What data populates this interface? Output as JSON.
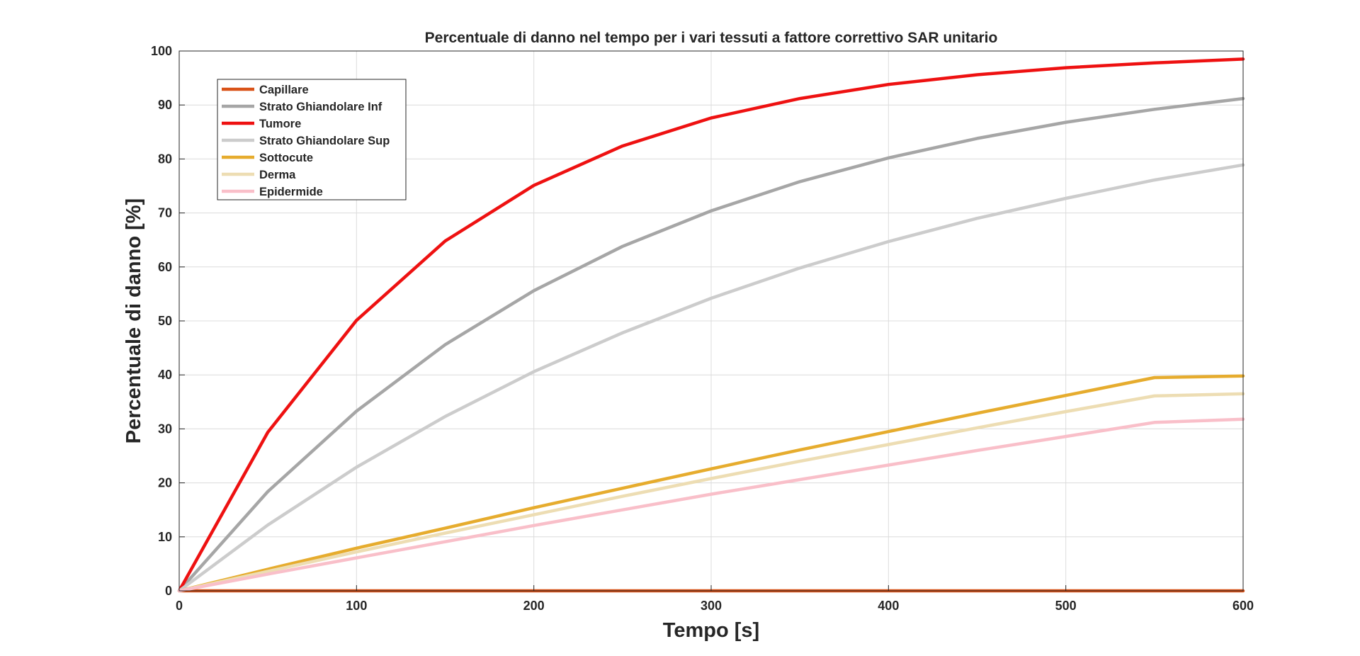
{
  "chart_data": {
    "type": "line",
    "title": "Percentuale di danno nel tempo per i vari tessuti a fattore correttivo SAR unitario",
    "xlabel": "Tempo [s]",
    "ylabel": "Percentuale di danno [%]",
    "xlim": [
      0,
      600
    ],
    "ylim": [
      0,
      100
    ],
    "xticks": [
      "0",
      "100",
      "200",
      "300",
      "400",
      "500",
      "600"
    ],
    "yticks": [
      "0",
      "10",
      "20",
      "30",
      "40",
      "50",
      "60",
      "70",
      "80",
      "90",
      "100"
    ],
    "grid": true,
    "legend_position": "top-left",
    "x": [
      0,
      50,
      100,
      150,
      200,
      250,
      300,
      350,
      400,
      450,
      500,
      550,
      600
    ],
    "series": [
      {
        "name": "Capillare",
        "color": "#D95319",
        "values": [
          0,
          0,
          0,
          0,
          0,
          0,
          0,
          0,
          0,
          0,
          0,
          0,
          0
        ]
      },
      {
        "name": "Strato Ghiandolare Inf",
        "color": "#A6A6A6",
        "values": [
          0,
          18.4,
          33.3,
          45.6,
          55.6,
          63.8,
          70.4,
          75.8,
          80.2,
          83.8,
          86.8,
          89.2,
          91.2
        ]
      },
      {
        "name": "Tumore",
        "color": "#EE1111",
        "values": [
          0,
          29.4,
          50.1,
          64.8,
          75.1,
          82.4,
          87.6,
          91.2,
          93.8,
          95.6,
          96.9,
          97.8,
          98.5
        ]
      },
      {
        "name": "Strato Ghiandolare Sup",
        "color": "#CCCCCC",
        "values": [
          0,
          12.2,
          22.9,
          32.3,
          40.6,
          47.8,
          54.2,
          59.8,
          64.7,
          69.0,
          72.7,
          76.1,
          78.9
        ]
      },
      {
        "name": "Sottocute",
        "color": "#E6AC2E",
        "values": [
          0,
          4.0,
          7.9,
          11.6,
          15.4,
          19.0,
          22.6,
          26.1,
          29.5,
          32.9,
          36.2,
          39.5,
          39.8
        ]
      },
      {
        "name": "Derma",
        "color": "#EDDDB3",
        "values": [
          0,
          3.6,
          7.2,
          10.7,
          14.1,
          17.5,
          20.8,
          24.0,
          27.1,
          30.2,
          33.2,
          36.1,
          36.5
        ]
      },
      {
        "name": "Epidermide",
        "color": "#F9BFC9",
        "values": [
          0,
          3.1,
          6.1,
          9.1,
          12.1,
          15.0,
          17.9,
          20.6,
          23.3,
          26.0,
          28.6,
          31.2,
          31.8
        ]
      }
    ]
  }
}
